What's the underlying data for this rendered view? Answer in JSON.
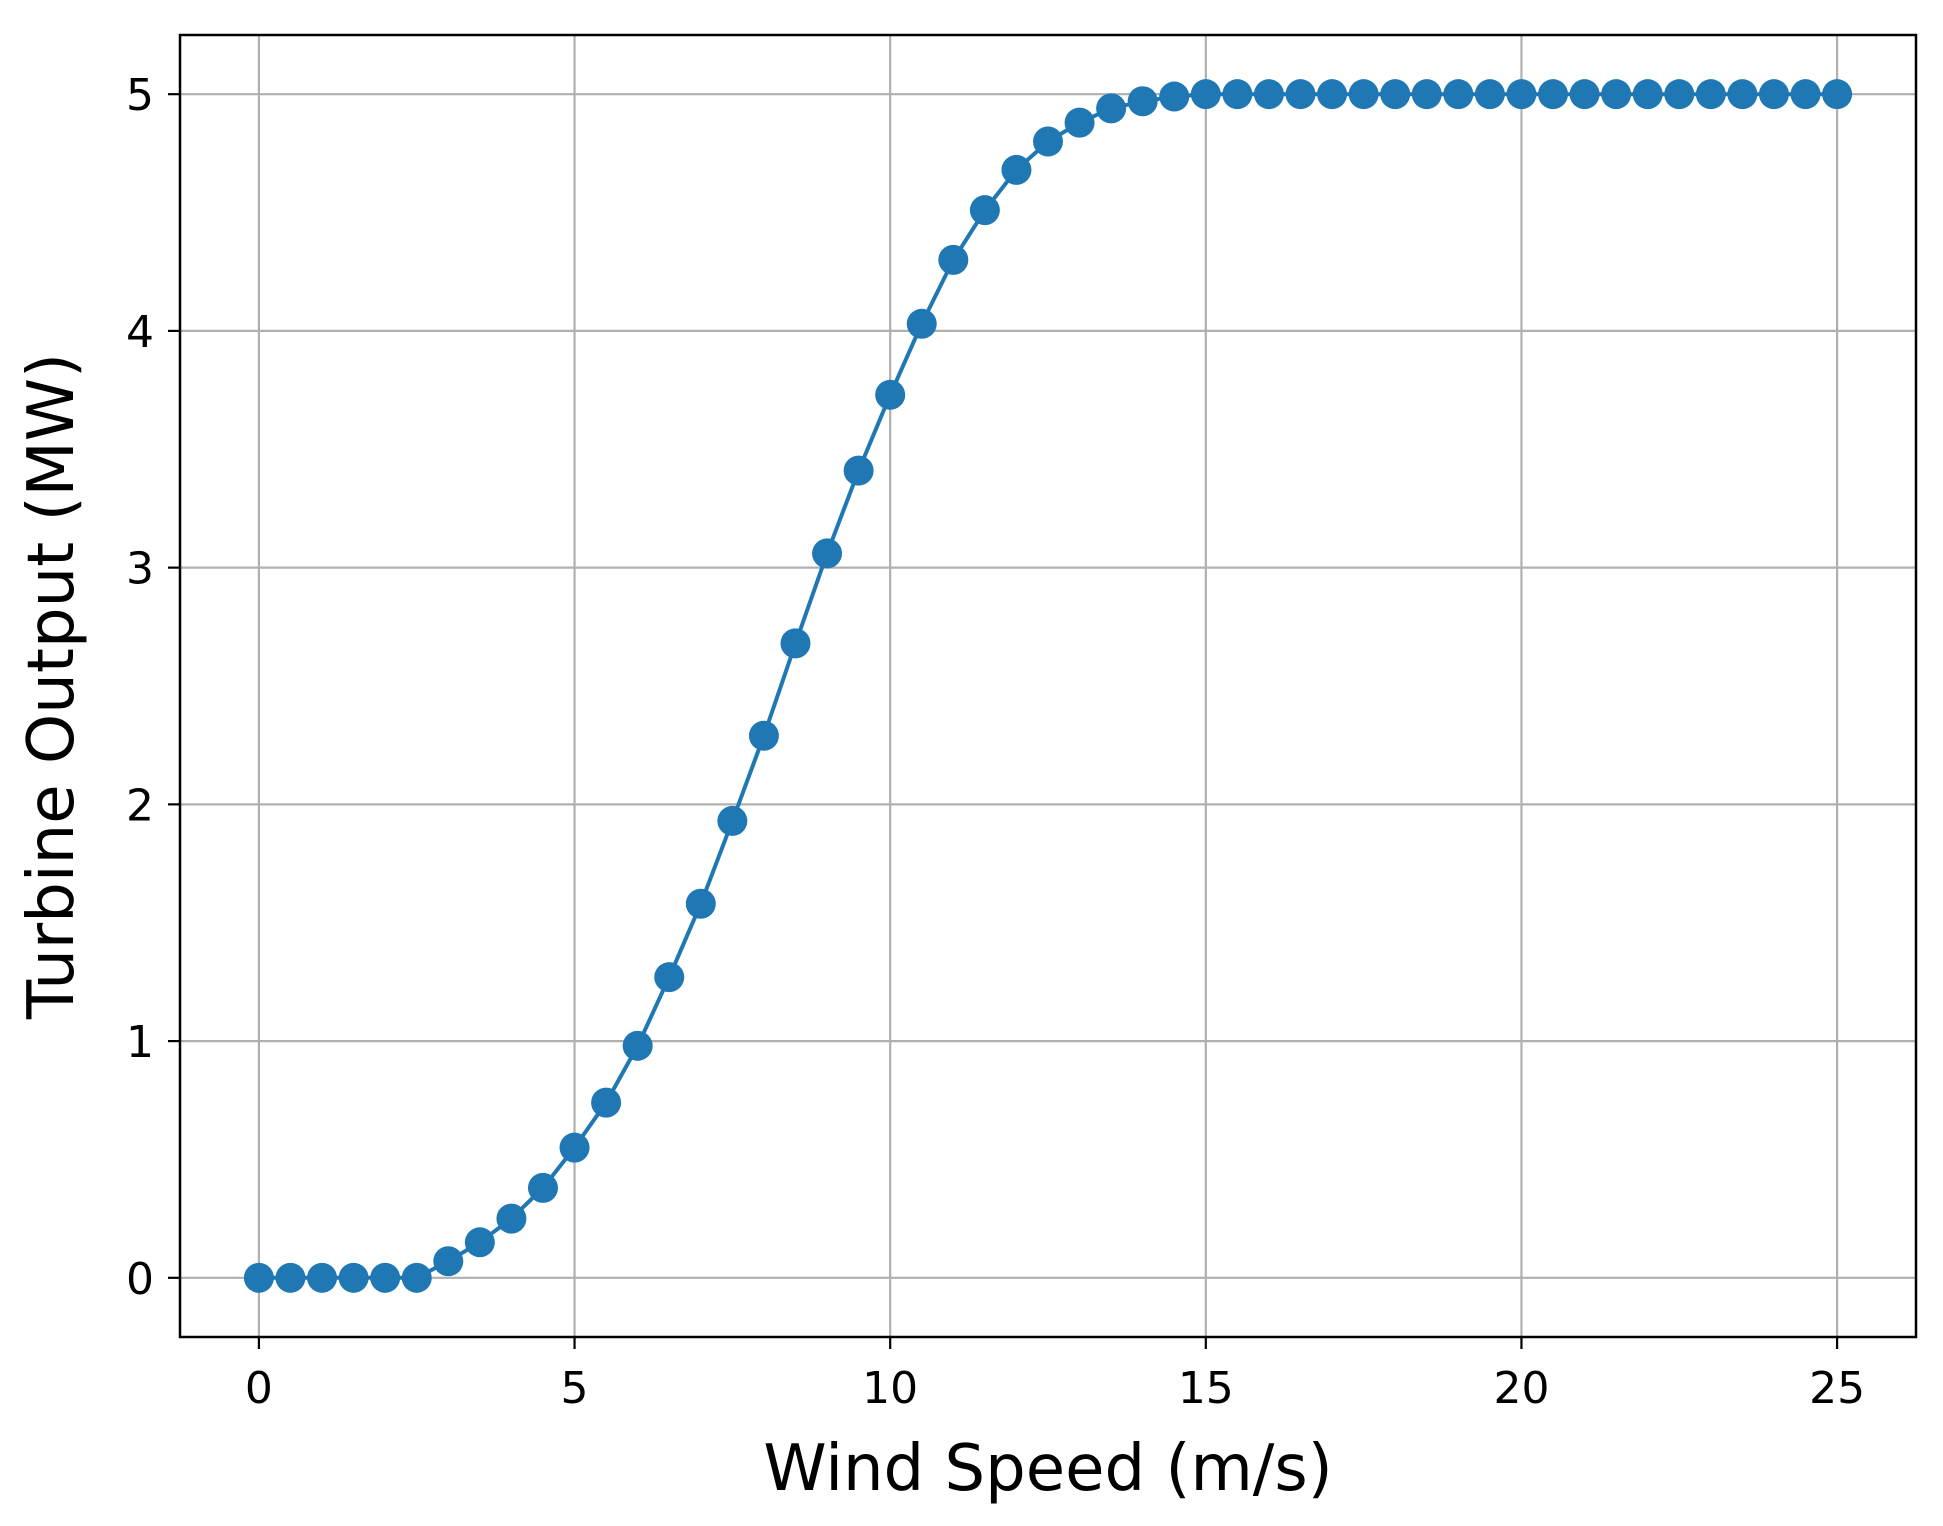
{
  "chart_data": {
    "type": "line",
    "title": "",
    "xlabel": "Wind Speed (m/s)",
    "ylabel": "Turbine Output (MW)",
    "xlim": [
      -1.25,
      26.25
    ],
    "ylim": [
      -0.25,
      5.25
    ],
    "xticks": [
      0,
      5,
      10,
      15,
      20,
      25
    ],
    "yticks": [
      0,
      1,
      2,
      3,
      4,
      5
    ],
    "xtick_labels": [
      "0",
      "5",
      "10",
      "15",
      "20",
      "25"
    ],
    "ytick_labels": [
      "0",
      "1",
      "2",
      "3",
      "4",
      "5"
    ],
    "grid": true,
    "markers": true,
    "series": [
      {
        "color": "#1f77b4",
        "x": [
          0,
          0.5,
          1,
          1.5,
          2,
          2.5,
          3,
          3.5,
          4,
          4.5,
          5,
          5.5,
          6,
          6.5,
          7,
          7.5,
          8,
          8.5,
          9,
          9.5,
          10,
          10.5,
          11,
          11.5,
          12,
          12.5,
          13,
          13.5,
          14,
          14.5,
          15,
          15.5,
          16,
          16.5,
          17,
          17.5,
          18,
          18.5,
          19,
          19.5,
          20,
          20.5,
          21,
          21.5,
          22,
          22.5,
          23,
          23.5,
          24,
          24.5,
          25
        ],
        "y": [
          0,
          0,
          0,
          0,
          0,
          0,
          0.07,
          0.15,
          0.25,
          0.38,
          0.55,
          0.74,
          0.98,
          1.27,
          1.58,
          1.93,
          2.29,
          2.68,
          3.06,
          3.41,
          3.73,
          4.03,
          4.3,
          4.51,
          4.68,
          4.8,
          4.88,
          4.94,
          4.97,
          4.99,
          5,
          5,
          5,
          5,
          5,
          5,
          5,
          5,
          5,
          5,
          5,
          5,
          5,
          5,
          5,
          5,
          5,
          5,
          5,
          5,
          5
        ]
      }
    ]
  }
}
